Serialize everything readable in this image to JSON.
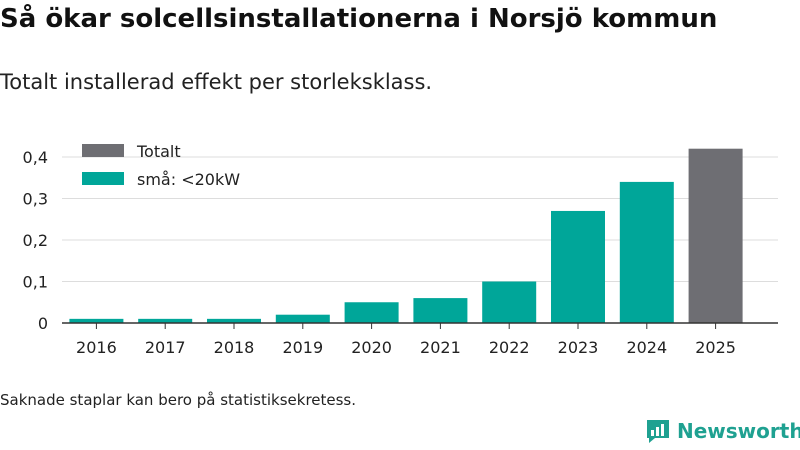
{
  "header": {
    "title": "Så ökar solcellsinstallationerna i Norsjö kommun",
    "subtitle": "Totalt installerad effekt per storleksklass."
  },
  "chart_data": {
    "type": "bar",
    "title": "Så ökar solcellsinstallationerna i Norsjö kommun",
    "subtitle": "Totalt installerad effekt per storleksklass.",
    "xlabel": "",
    "ylabel": "",
    "categories": [
      "2016",
      "2017",
      "2018",
      "2019",
      "2020",
      "2021",
      "2022",
      "2023",
      "2024",
      "2025"
    ],
    "series": [
      {
        "name": "små: <20kW",
        "color": "#00a699",
        "values": [
          0.01,
          0.01,
          0.01,
          0.02,
          0.05,
          0.06,
          0.1,
          0.27,
          0.34,
          null
        ]
      },
      {
        "name": "Totalt",
        "color": "#6e6e73",
        "values": [
          null,
          null,
          null,
          null,
          null,
          null,
          null,
          null,
          null,
          0.42
        ]
      }
    ],
    "legend_order": [
      "Totalt",
      "små: <20kW"
    ],
    "legend_position": "top-left",
    "yticks": [
      "0",
      "0,1",
      "0,2",
      "0,3",
      "0,4"
    ],
    "ytick_values": [
      0,
      0.1,
      0.2,
      0.3,
      0.4
    ],
    "ylim": [
      0,
      0.4
    ],
    "grid": true
  },
  "footer": {
    "note": "Saknade staplar kan bero på statistiksekretess.",
    "brand": "Newsworthy"
  },
  "colors": {
    "teal": "#00a699",
    "gray": "#6e6e73",
    "grid": "#dddddd",
    "axis": "#333333",
    "brand": "#1fa191"
  }
}
